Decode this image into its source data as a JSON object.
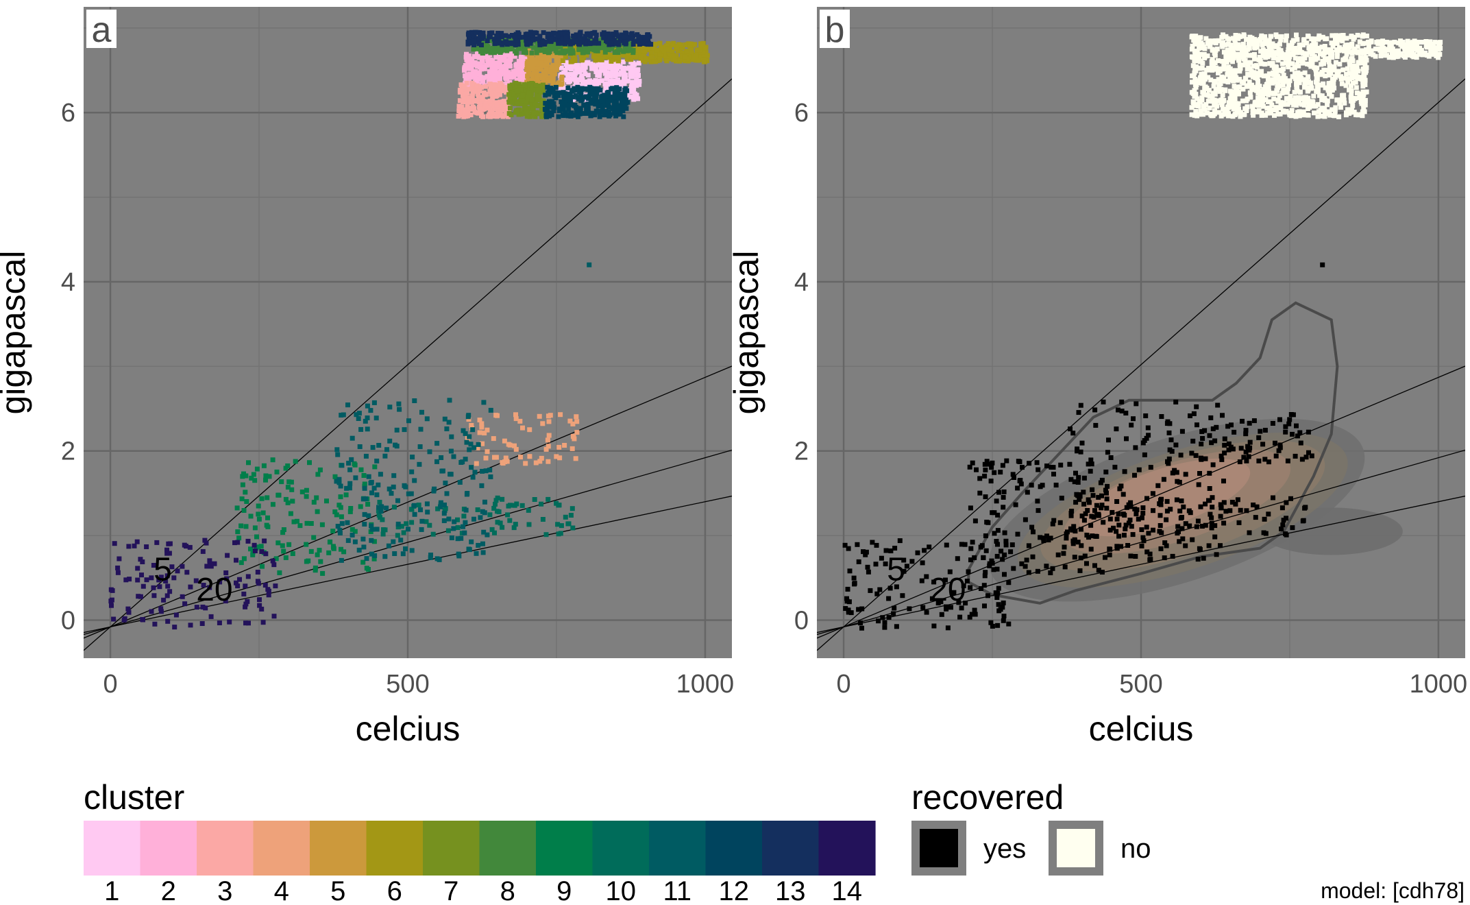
{
  "chart_data": [
    {
      "panel_tag": "a",
      "type": "scatter",
      "xlabel": "celcius",
      "ylabel": "gigapascal",
      "xlim": [
        -45,
        1045
      ],
      "ylim": [
        -0.45,
        7.25
      ],
      "xticks": [
        0,
        500,
        1000
      ],
      "yticks": [
        0,
        2,
        4,
        6
      ],
      "x_tick_labels": [
        "0",
        "500",
        "1000"
      ],
      "y_tick_labels": [
        "0",
        "2",
        "4",
        "6"
      ],
      "grid": true,
      "background": "#7f7f7f",
      "reference_lines": [
        {
          "slope": 0.0062,
          "intercept": -0.08,
          "label": "5",
          "label_at": [
            88,
            0.47
          ]
        },
        {
          "slope": 0.00295,
          "intercept": -0.08
        },
        {
          "slope": 0.002,
          "intercept": -0.08
        },
        {
          "slope": 0.00148,
          "intercept": -0.08,
          "label": "20",
          "label_at": [
            175,
            0.23
          ]
        }
      ],
      "clusters": [
        {
          "cluster": "1",
          "x_range": [
            755,
            890
          ],
          "y_range": [
            6.15,
            6.6
          ]
        },
        {
          "cluster": "2",
          "x_range": [
            595,
            700
          ],
          "y_range": [
            6.3,
            6.72
          ]
        },
        {
          "cluster": "3",
          "x_range": [
            585,
            670
          ],
          "y_range": [
            5.95,
            6.35
          ]
        },
        {
          "cluster": "4",
          "x_range": [
            595,
            790
          ],
          "y_range": [
            1.85,
            2.45
          ]
        },
        {
          "cluster": "5",
          "x_range": [
            700,
            760
          ],
          "y_range": [
            6.3,
            6.75
          ]
        },
        {
          "cluster": "6",
          "x_range": [
            760,
            1005
          ],
          "y_range": [
            6.6,
            6.82
          ]
        },
        {
          "cluster": "7",
          "x_range": [
            670,
            730
          ],
          "y_range": [
            5.95,
            6.35
          ]
        },
        {
          "cluster": "8",
          "x_range": [
            610,
            880
          ],
          "y_range": [
            6.7,
            6.88
          ]
        },
        {
          "cluster": "9",
          "x_range": [
            210,
            450
          ],
          "y_range": [
            0.55,
            1.9
          ]
        },
        {
          "cluster": "10",
          "x_range": [
            450,
            780
          ],
          "y_range": [
            1.0,
            1.45
          ]
        },
        {
          "cluster": "11",
          "x_range": [
            380,
            640
          ],
          "y_range": [
            0.7,
            2.6
          ]
        },
        {
          "cluster": "12",
          "x_range": [
            730,
            870
          ],
          "y_range": [
            5.95,
            6.3
          ]
        },
        {
          "cluster": "13",
          "x_range": [
            600,
            910
          ],
          "y_range": [
            6.8,
            6.95
          ]
        },
        {
          "cluster": "14",
          "x_range": [
            0,
            280
          ],
          "y_range": [
            -0.1,
            0.95
          ]
        }
      ],
      "outlier_point": {
        "x": 805,
        "y": 4.2,
        "cluster": "11"
      }
    },
    {
      "panel_tag": "b",
      "type": "scatter",
      "xlabel": "celcius",
      "ylabel": "gigapascal",
      "xlim": [
        -45,
        1045
      ],
      "ylim": [
        -0.45,
        7.25
      ],
      "xticks": [
        0,
        500,
        1000
      ],
      "yticks": [
        0,
        2,
        4,
        6
      ],
      "x_tick_labels": [
        "0",
        "500",
        "1000"
      ],
      "y_tick_labels": [
        "0",
        "2",
        "4",
        "6"
      ],
      "grid": true,
      "background": "#7f7f7f",
      "reference_lines": [
        {
          "slope": 0.0062,
          "intercept": -0.08,
          "label": "5",
          "label_at": [
            88,
            0.47
          ]
        },
        {
          "slope": 0.00295,
          "intercept": -0.08
        },
        {
          "slope": 0.002,
          "intercept": -0.08
        },
        {
          "slope": 0.00148,
          "intercept": -0.08,
          "label": "20",
          "label_at": [
            175,
            0.23
          ]
        }
      ],
      "density_outline": [
        [
          210,
          0.6
        ],
        [
          250,
          1.1
        ],
        [
          300,
          1.5
        ],
        [
          360,
          1.95
        ],
        [
          420,
          2.4
        ],
        [
          480,
          2.6
        ],
        [
          550,
          2.6
        ],
        [
          620,
          2.6
        ],
        [
          660,
          2.8
        ],
        [
          700,
          3.1
        ],
        [
          720,
          3.55
        ],
        [
          760,
          3.75
        ],
        [
          820,
          3.55
        ],
        [
          830,
          3.0
        ],
        [
          820,
          2.2
        ],
        [
          790,
          1.7
        ],
        [
          740,
          1.05
        ],
        [
          700,
          0.85
        ],
        [
          600,
          0.75
        ],
        [
          500,
          0.55
        ],
        [
          390,
          0.35
        ],
        [
          330,
          0.2
        ],
        [
          250,
          0.3
        ],
        [
          210,
          0.45
        ]
      ],
      "density_levels": [
        {
          "cx": 560,
          "cy": 1.3,
          "rx": 330,
          "ry": 0.85,
          "fill": "#6e6e6e"
        },
        {
          "cx": 570,
          "cy": 1.3,
          "rx": 290,
          "ry": 0.7,
          "fill": "#7a7468"
        },
        {
          "cx": 570,
          "cy": 1.35,
          "rx": 250,
          "ry": 0.58,
          "fill": "#8a7a68"
        },
        {
          "cx": 560,
          "cy": 1.4,
          "rx": 200,
          "ry": 0.46,
          "fill": "#9b8070"
        },
        {
          "cx": 540,
          "cy": 1.45,
          "rx": 150,
          "ry": 0.34,
          "fill": "#ad8878"
        }
      ],
      "density_lobe": {
        "cx": 820,
        "cy": 1.05,
        "rx": 120,
        "ry": 0.28
      },
      "recovered_yes": [
        {
          "x_range": [
            0,
            280
          ],
          "y_range": [
            -0.1,
            0.95
          ]
        },
        {
          "x_range": [
            210,
            450
          ],
          "y_range": [
            0.55,
            1.9
          ]
        },
        {
          "x_range": [
            450,
            780
          ],
          "y_range": [
            1.0,
            1.45
          ]
        },
        {
          "x_range": [
            380,
            640
          ],
          "y_range": [
            0.7,
            2.6
          ]
        },
        {
          "x_range": [
            595,
            790
          ],
          "y_range": [
            1.85,
            2.45
          ]
        }
      ],
      "recovered_no": [
        {
          "x_range": [
            585,
            880
          ],
          "y_range": [
            5.95,
            6.92
          ]
        },
        {
          "x_range": [
            880,
            1005
          ],
          "y_range": [
            6.65,
            6.85
          ]
        }
      ],
      "outlier_point": {
        "x": 805,
        "y": 4.2,
        "recovered": "yes"
      }
    }
  ],
  "legend_cluster": {
    "title": "cluster",
    "levels": [
      "1",
      "2",
      "3",
      "4",
      "5",
      "6",
      "7",
      "8",
      "9",
      "10",
      "11",
      "12",
      "13",
      "14"
    ],
    "colors": [
      "#ffc9f2",
      "#ffb0d9",
      "#fba8a5",
      "#eea27a",
      "#cc993c",
      "#a39715",
      "#76911f",
      "#42883b",
      "#007e4a",
      "#006c5a",
      "#005b62",
      "#00445e",
      "#142f5e",
      "#23125a"
    ]
  },
  "legend_recovered": {
    "title": "recovered",
    "items": [
      {
        "label": "yes",
        "color": "#000000"
      },
      {
        "label": "no",
        "color": "#fffff0"
      }
    ]
  },
  "caption": "model: [cdh78]"
}
